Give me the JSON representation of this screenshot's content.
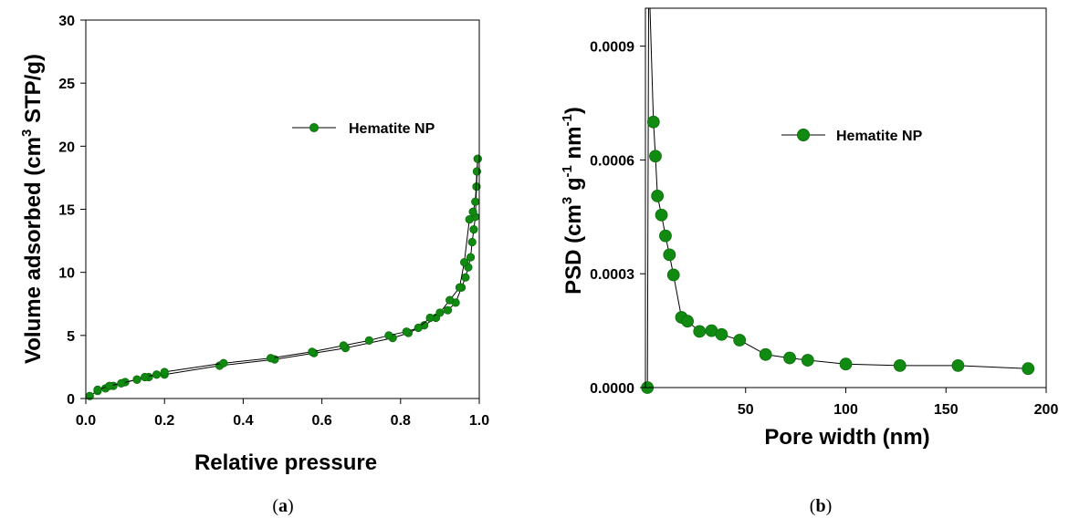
{
  "colors": {
    "marker": "#118a11",
    "marker_stroke": "#0b6e0b",
    "line": "#000000"
  },
  "chart_data": [
    {
      "type": "line",
      "panel": "a",
      "xlabel": "Relative pressure",
      "ylabel_parts": [
        "Volume adsorbed (cm",
        "3",
        " STP/g)"
      ],
      "xlim": [
        0,
        1.0
      ],
      "ylim": [
        0,
        30
      ],
      "xticks": [
        "0.0",
        "0.2",
        "0.4",
        "0.6",
        "0.8",
        "1.0"
      ],
      "yticks": [
        "0",
        "5",
        "10",
        "15",
        "20",
        "25",
        "30"
      ],
      "legend": {
        "label": "Hematite NP",
        "position": "upper-right"
      },
      "grid": false,
      "series": [
        {
          "label": "Hematite NP",
          "x": [
            0.01,
            0.03,
            0.05,
            0.07,
            0.1,
            0.13,
            0.16,
            0.2,
            0.34,
            0.48,
            0.58,
            0.66,
            0.78,
            0.82,
            0.86,
            0.89,
            0.92,
            0.94,
            0.955,
            0.965,
            0.972,
            0.978,
            0.982,
            0.986,
            0.99,
            0.993,
            0.996
          ],
          "y": [
            0.2,
            0.6,
            0.8,
            1.0,
            1.3,
            1.5,
            1.7,
            1.9,
            2.6,
            3.1,
            3.6,
            4.0,
            4.8,
            5.2,
            5.8,
            6.4,
            7.0,
            7.6,
            8.8,
            9.6,
            10.4,
            11.2,
            12.4,
            13.4,
            14.4,
            16.8,
            19.0
          ]
        },
        {
          "label": "Hematite NP",
          "x": [
            0.996,
            0.994,
            0.99,
            0.984,
            0.975,
            0.962,
            0.95,
            0.925,
            0.9,
            0.875,
            0.845,
            0.815,
            0.77,
            0.72,
            0.655,
            0.575,
            0.47,
            0.35,
            0.2,
            0.18,
            0.15,
            0.13,
            0.09,
            0.06,
            0.03
          ],
          "y": [
            19.0,
            18.0,
            15.6,
            14.8,
            14.2,
            10.8,
            8.8,
            7.8,
            6.8,
            6.4,
            5.6,
            5.3,
            5.0,
            4.6,
            4.2,
            3.7,
            3.2,
            2.8,
            2.1,
            1.9,
            1.7,
            1.5,
            1.2,
            1.0,
            0.7
          ]
        }
      ]
    },
    {
      "type": "line",
      "panel": "b",
      "xlabel": "Pore width (nm)",
      "ylabel_parts": [
        "PSD (cm",
        "3",
        " g",
        "-1",
        " nm",
        "-1",
        ")"
      ],
      "xlim": [
        0,
        200
      ],
      "ylim": [
        0,
        0.001
      ],
      "xticks": [
        "50",
        "100",
        "150",
        "200"
      ],
      "yticks": [
        "0.0000",
        "0.0003",
        "0.0006",
        "0.0009"
      ],
      "legend": {
        "label": "Hematite NP",
        "position": "upper-right"
      },
      "grid": false,
      "series": [
        {
          "label": "Hematite NP",
          "x": [
            1,
            4,
            5,
            6,
            8,
            10,
            12,
            14,
            18,
            21,
            27,
            33,
            38,
            47,
            60,
            72,
            81,
            100,
            127,
            156,
            191
          ],
          "y": [
            0.0,
            0.0007,
            0.00061,
            0.000505,
            0.000455,
            0.0004,
            0.00035,
            0.000297,
            0.000185,
            0.000175,
            0.000148,
            0.00015,
            0.00014,
            0.000125,
            8.7e-05,
            7.8e-05,
            7.2e-05,
            6.2e-05,
            5.8e-05,
            5.8e-05,
            5e-05
          ],
          "spike": {
            "x": 1.6,
            "y_top": 0.001
          }
        }
      ]
    }
  ],
  "captions": {
    "a": "a",
    "b": "b"
  }
}
